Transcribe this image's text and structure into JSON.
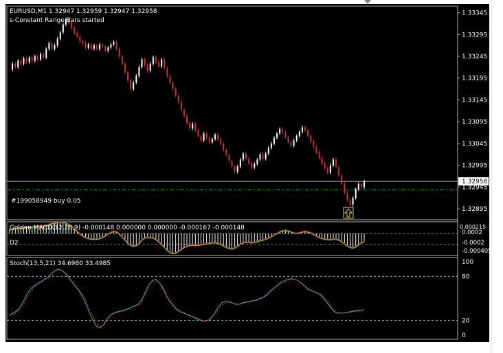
{
  "colors": {
    "background": "#000000",
    "panel_border": "#b0b0b0",
    "axis_text": "#ffffff",
    "bull_candle": "#ffffff",
    "bear_candle": "#cc3030",
    "macd_bar": "#ffffff",
    "macd_signal": "#cc3030",
    "macd_line": "#66bb33",
    "stoch_main": "#33aacc",
    "stoch_signal": "#ff3030",
    "order_line": "#33aa33",
    "level_line": "#bbbbbb"
  },
  "main": {
    "title": "EURUSD,M1  1.32947 1.32959 1.32947 1.32958",
    "status": "s-Constant Range Bars started",
    "order_label": "#199058949 buy 0.05",
    "current_price": "1.32958",
    "axis_ticks": [
      "1.33345",
      "1.33295",
      "1.33245",
      "1.33195",
      "1.33145",
      "1.33095",
      "1.33045",
      "1.32995",
      "1.32945",
      "1.32895"
    ],
    "buy_arrow_icon": "up-arrow-icon"
  },
  "macd": {
    "title": "Golden MACD(12,26,9) -0.000148 0.000000 0.000000 -0.000167 -0.000148",
    "label": "D2",
    "axis_ticks": [
      "0.0002",
      "-0.0002",
      "-0.000405"
    ],
    "axis_top": "0.000215"
  },
  "stoch": {
    "title": "Stoch(13,5,21) 34.6980 33.4985",
    "axis_ticks": [
      "100",
      "80",
      "20",
      "0"
    ]
  },
  "chart_data": [
    {
      "type": "candlestick",
      "title": "EURUSD,M1  1.32947 1.32959 1.32947 1.32958",
      "ylim": [
        1.3287,
        1.3336
      ],
      "close_path": [
        1.33215,
        1.33228,
        1.3322,
        1.33235,
        1.33228,
        1.3324,
        1.33232,
        1.33242,
        1.33235,
        1.33245,
        1.33238,
        1.3325,
        1.33242,
        1.33262,
        1.33275,
        1.33262,
        1.3327,
        1.33285,
        1.333,
        1.33318,
        1.3333,
        1.33322,
        1.3331,
        1.33298,
        1.3329,
        1.3328,
        1.33275,
        1.33265,
        1.33272,
        1.33262,
        1.3327,
        1.33262,
        1.33272,
        1.33268,
        1.33258,
        1.33265,
        1.33272,
        1.33278,
        1.33262,
        1.33245,
        1.33228,
        1.33208,
        1.3319,
        1.3317,
        1.33185,
        1.332,
        1.3322,
        1.33238,
        1.33225,
        1.33212,
        1.33228,
        1.33243,
        1.33232,
        1.33222,
        1.33238,
        1.33218,
        1.332,
        1.33185,
        1.3317,
        1.33155,
        1.3314,
        1.33122,
        1.33108,
        1.33092,
        1.3308,
        1.3309,
        1.33075,
        1.33062,
        1.33052,
        1.33068,
        1.33058,
        1.33048,
        1.33055,
        1.33065,
        1.33055,
        1.33045,
        1.3303,
        1.33018,
        1.33005,
        1.32992,
        1.3298,
        1.32992,
        1.33008,
        1.33022,
        1.3301,
        1.33,
        1.3299,
        1.32998,
        1.33008,
        1.3302,
        1.3301,
        1.33022,
        1.33035,
        1.33045,
        1.33058,
        1.33068,
        1.33078,
        1.3307,
        1.3306,
        1.33048,
        1.3304,
        1.33052,
        1.33062,
        1.33072,
        1.33082,
        1.33075,
        1.33062,
        1.3305,
        1.33038,
        1.33025,
        1.33012,
        1.33,
        1.32988,
        1.32978,
        1.32995,
        1.33008,
        1.32992,
        1.32972,
        1.32952,
        1.32932,
        1.32915,
        1.32905,
        1.3292,
        1.3294,
        1.32952,
        1.32945,
        1.32958
      ],
      "series": [
        {
          "name": "#199058949 buy 0.05",
          "values": [
            1.3295
          ]
        }
      ],
      "current": 1.32958
    },
    {
      "type": "bar",
      "title": "Golden MACD(12,26,9) -0.000148 0.000000 0.000000 -0.000167 -0.000148",
      "ylim": [
        -0.000405,
        0.000215
      ],
      "values": [
        8e-05,
        9e-05,
        0.0001,
        0.00011,
        0.00012,
        0.00012,
        0.00013,
        0.00013,
        0.00014,
        0.00014,
        0.00015,
        0.00015,
        0.00015,
        0.00016,
        0.00018,
        0.0002,
        0.00021,
        0.00022,
        0.00023,
        0.00023,
        0.00021,
        0.00018,
        0.00015,
        0.0001,
        5e-05,
        0.0,
        -4e-05,
        -7e-05,
        -9e-05,
        -0.0001,
        -0.0001,
        -0.0001,
        -9e-05,
        -7e-05,
        -4e-05,
        0.0,
        3e-05,
        5e-05,
        4e-05,
        0.0,
        -6e-05,
        -0.00012,
        -0.00018,
        -0.00022,
        -0.00024,
        -0.00023,
        -0.00018,
        -0.00012,
        -8e-05,
        -6e-05,
        -7e-05,
        -8e-05,
        -0.00011,
        -0.00015,
        -0.0002,
        -0.00026,
        -0.00032,
        -0.00036,
        -0.00038,
        -0.00037,
        -0.00034,
        -0.0003,
        -0.00026,
        -0.00024,
        -0.00022,
        -0.00022,
        -0.00022,
        -0.00022,
        -0.00021,
        -0.0002,
        -0.00019,
        -0.00018,
        -0.00017,
        -0.00017,
        -0.00018,
        -0.0002,
        -0.00023,
        -0.00026,
        -0.00028,
        -0.00029,
        -0.00027,
        -0.00024,
        -0.0002,
        -0.00017,
        -0.00016,
        -0.00016,
        -0.00017,
        -0.00016,
        -0.00015,
        -0.00013,
        -0.00012,
        -0.0001,
        -8e-05,
        -5e-05,
        -2e-05,
        1e-05,
        4e-05,
        6e-05,
        7e-05,
        6e-05,
        4e-05,
        2e-05,
        1e-05,
        2e-05,
        4e-05,
        5e-05,
        4e-05,
        2e-05,
        -1e-05,
        -4e-05,
        -7e-05,
        -9e-05,
        -0.0001,
        -0.00011,
        -0.00011,
        -0.0001,
        -0.0001,
        -0.00012,
        -0.00015,
        -0.00019,
        -0.00023,
        -0.00026,
        -0.00027,
        -0.00025,
        -0.00021,
        -0.00017,
        -0.00015
      ],
      "series": [
        {
          "name": "D2",
          "values": []
        }
      ]
    },
    {
      "type": "line",
      "title": "Stoch(13,5,21) 34.6980 33.4985",
      "ylim": [
        0,
        100
      ],
      "series": [
        {
          "name": "main",
          "values": [
            28,
            30,
            33,
            38,
            46,
            56,
            63,
            67,
            70,
            73,
            76,
            79,
            84,
            88,
            90,
            88,
            84,
            78,
            72,
            66,
            60,
            52,
            42,
            30,
            20,
            12,
            10,
            14,
            22,
            28,
            30,
            32,
            33,
            34,
            36,
            38,
            40,
            42,
            48,
            58,
            68,
            74,
            76,
            72,
            64,
            54,
            46,
            40,
            35,
            32,
            30,
            28,
            26,
            24,
            22,
            20,
            19,
            20,
            24,
            30,
            38,
            44,
            46,
            46,
            44,
            42,
            42,
            44,
            45,
            46,
            47,
            48,
            50,
            52,
            55,
            60,
            64,
            68,
            72,
            74,
            76,
            77,
            76,
            74,
            70,
            66,
            62,
            60,
            58,
            56,
            52,
            46,
            40,
            34,
            30,
            30,
            30,
            31,
            32,
            33,
            33.5,
            34,
            34.7
          ]
        },
        {
          "name": "signal",
          "values": [
            26,
            28,
            31,
            35,
            42,
            51,
            59,
            65,
            68,
            71,
            74,
            77,
            81,
            86,
            89,
            88,
            85,
            80,
            74,
            68,
            62,
            55,
            46,
            35,
            25,
            16,
            12,
            13,
            19,
            25,
            29,
            31,
            32,
            33,
            35,
            37,
            39,
            41,
            45,
            54,
            64,
            71,
            74,
            72,
            66,
            57,
            49,
            42,
            37,
            33,
            31,
            29,
            27,
            25,
            23,
            21,
            20,
            20,
            22,
            27,
            35,
            41,
            44,
            45,
            44,
            43,
            42,
            43,
            44,
            45,
            46,
            47,
            49,
            51,
            54,
            58,
            62,
            66,
            70,
            72,
            74,
            76,
            76,
            74,
            71,
            67,
            63,
            61,
            59,
            57,
            54,
            48,
            42,
            36,
            32,
            30,
            30,
            30,
            31,
            32,
            32.5,
            33,
            33.5
          ]
        }
      ]
    }
  ]
}
